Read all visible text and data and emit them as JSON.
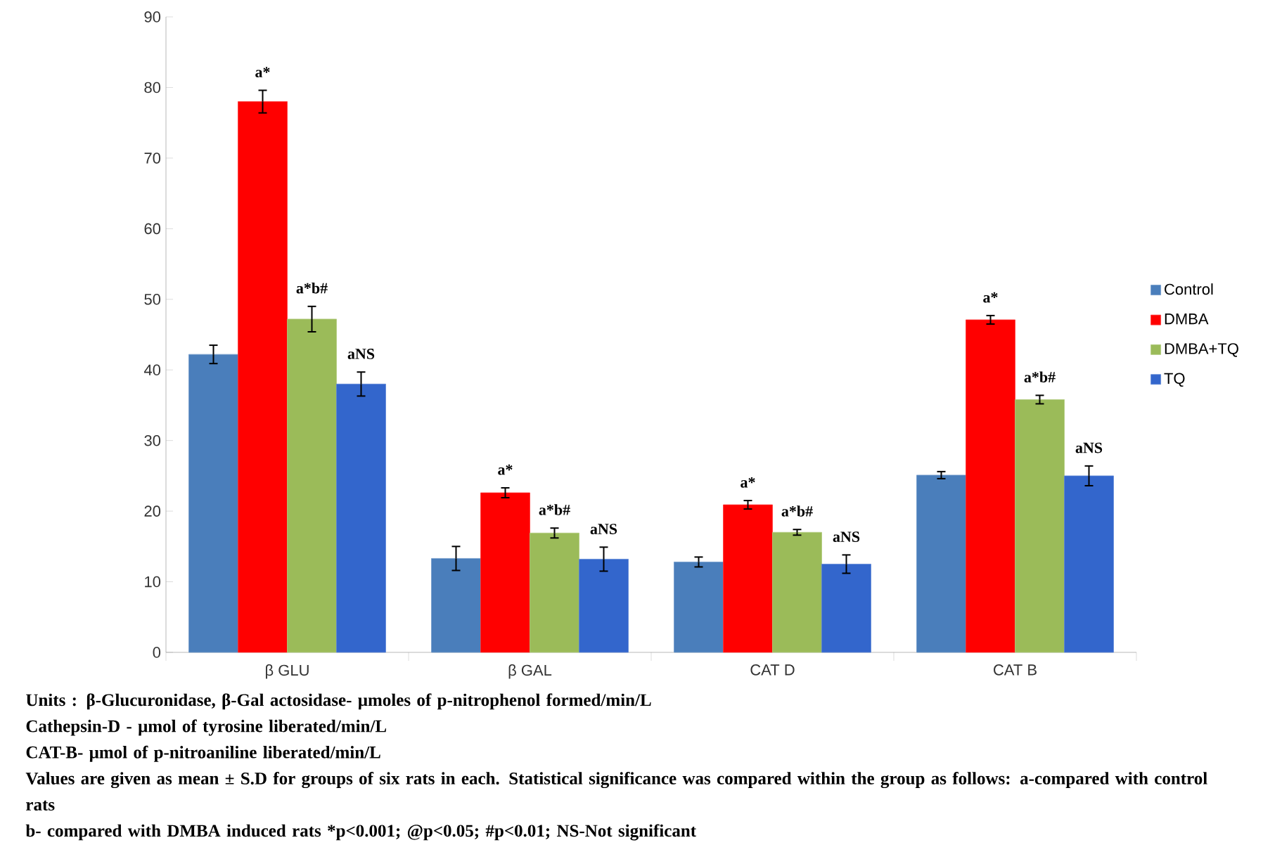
{
  "chart_data": {
    "type": "bar",
    "categories": [
      "β GLU",
      "β GAL",
      "CAT D",
      "CAT B"
    ],
    "series": [
      {
        "name": "Control",
        "color": "#4a7ebb",
        "values": [
          42.2,
          13.3,
          12.8,
          25.1
        ],
        "errors": [
          1.3,
          1.7,
          0.7,
          0.5
        ]
      },
      {
        "name": "DMBA",
        "color": "#ff0000",
        "values": [
          78,
          22.6,
          20.9,
          47.1
        ],
        "errors": [
          1.6,
          0.7,
          0.6,
          0.6
        ]
      },
      {
        "name": "DMBA+TQ",
        "color": "#9bbb59",
        "values": [
          47.2,
          16.9,
          17.0,
          35.8
        ],
        "errors": [
          1.8,
          0.7,
          0.4,
          0.6
        ]
      },
      {
        "name": "TQ",
        "color": "#3366cc",
        "values": [
          38,
          13.2,
          12.5,
          25.0
        ],
        "errors": [
          1.7,
          1.7,
          1.3,
          1.4
        ]
      }
    ],
    "ylim": [
      0,
      90
    ],
    "yticks": [
      0,
      10,
      20,
      30,
      40,
      50,
      60,
      70,
      80,
      90
    ],
    "grid": false,
    "legend": "right",
    "annotations": [
      "a*",
      "a*b#",
      "aNS",
      "a*",
      "a*b#",
      "aNS",
      "a*",
      "a*b#",
      "aNS",
      "a*",
      "a*b#",
      "aNS",
      "Units : β-Glucuronidase, β-Gal actosidase- μmoles of p-nitrophenol formed/min/L",
      "Cathepsin-D - μmol of tyrosine liberated/min/L",
      "CAT-B- μmol of p-nitroaniline liberated/min/L",
      "Values are given as mean ± S.D for groups of six rats in each.  Statistical significance was compared within the group as follows:  a-compared with control rats",
      "b- compared with DMBA induced rats *p<0.001; @p<0.05; #p<0.01; NS-Not significant"
    ]
  }
}
